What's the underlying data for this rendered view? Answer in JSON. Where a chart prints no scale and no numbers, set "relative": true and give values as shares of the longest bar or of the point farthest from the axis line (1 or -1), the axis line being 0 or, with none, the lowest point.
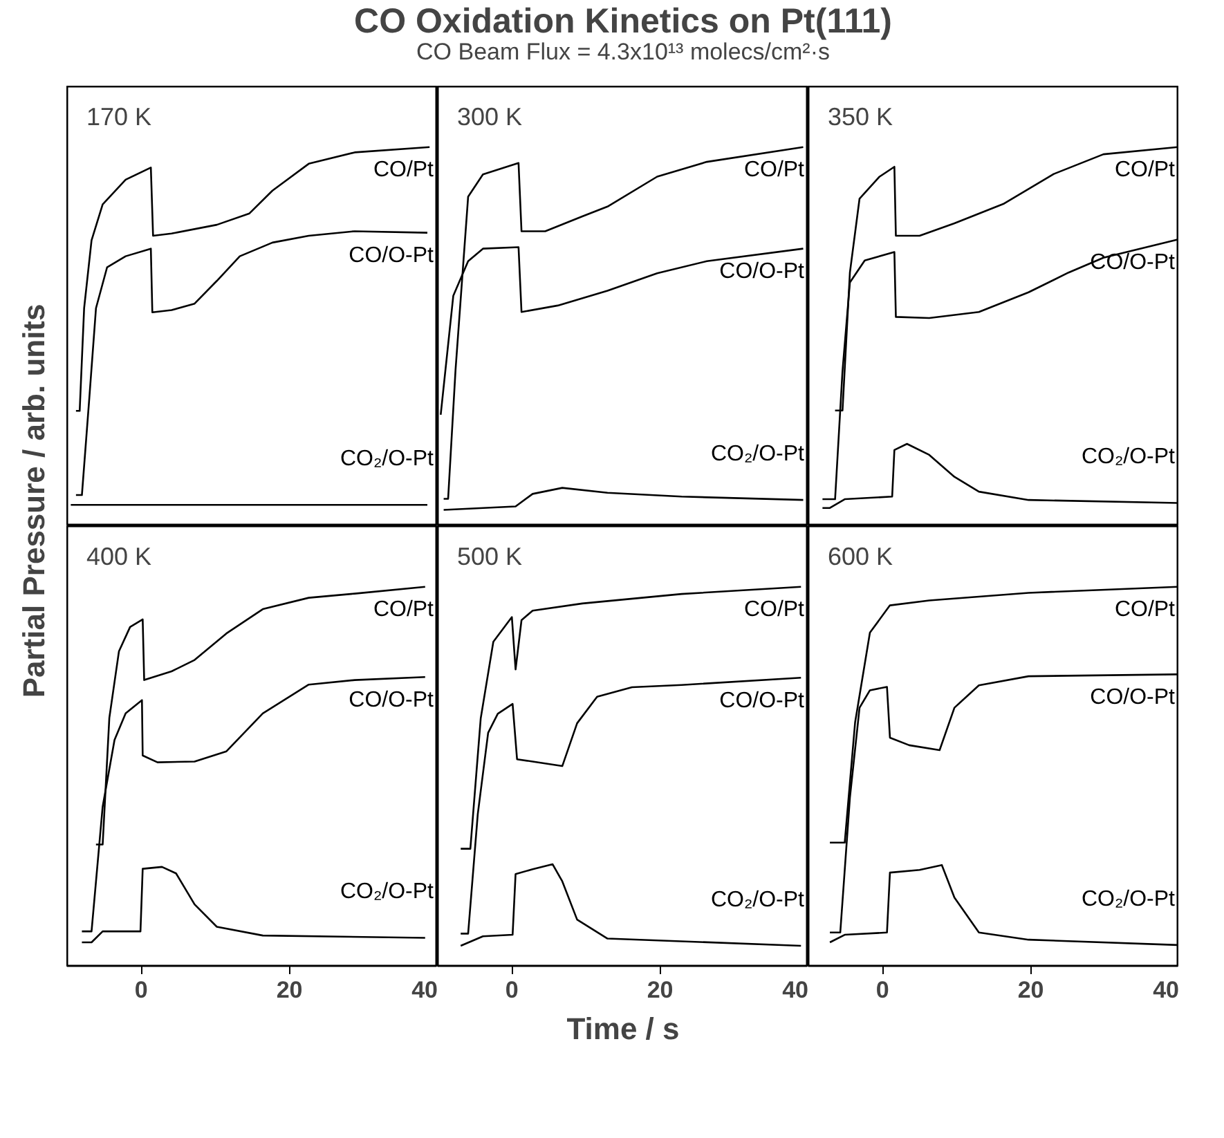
{
  "chart_data": [
    {
      "type": "line",
      "ylabel": "Partial Pressure / arb. units",
      "relative": true,
      "annotations": [
        "170 K"
      ],
      "xlim": [
        -10,
        40
      ],
      "tick_labels": false,
      "grid": false,
      "series": [
        {
          "name": "CO/Pt",
          "color": "#000000",
          "x": [
            -8.8,
            -8.3,
            -7.7,
            -6.7,
            -5.2,
            -2.1,
            1.3,
            1.6,
            4.1,
            10.2,
            14.6,
            17.7,
            22.6,
            28.8,
            38.9
          ],
          "values": [
            0.304,
            0.304,
            0.575,
            0.754,
            0.849,
            0.914,
            0.946,
            0.766,
            0.772,
            0.795,
            0.825,
            0.885,
            0.956,
            0.986,
            1.0
          ]
        },
        {
          "name": "CO/O-Pt",
          "color": "#000000",
          "x": [
            -8.8,
            -8,
            -7,
            -6.1,
            -4.6,
            -2.1,
            1.3,
            1.5,
            4.1,
            7.2,
            10.2,
            13.3,
            17.7,
            22.6,
            28.8,
            38.6
          ],
          "values": [
            0.082,
            0.082,
            0.338,
            0.575,
            0.683,
            0.712,
            0.732,
            0.564,
            0.57,
            0.587,
            0.647,
            0.712,
            0.748,
            0.766,
            0.778,
            0.774
          ]
        },
        {
          "name": "CO₂/O-Pt",
          "color": "#000000",
          "x": [
            -9.5,
            10,
            38.6
          ],
          "values": [
            0.056,
            0.056,
            0.056
          ]
        }
      ]
    },
    {
      "type": "line",
      "title": "CO Oxidation Kinetics on Pt(111)",
      "subtitle": "CO Beam Flux = 4.3x10¹³ molecs/cm²·s",
      "relative": true,
      "annotations": [
        "300 K"
      ],
      "xlim": [
        -10,
        40
      ],
      "tick_labels": false,
      "grid": false,
      "series": [
        {
          "name": "CO/Pt",
          "color": "#000000",
          "x": [
            -9.2,
            -8.6,
            -7.6,
            -5.9,
            -3.9,
            0.9,
            1.3,
            4.5,
            9.5,
            12.9,
            19.6,
            26.3,
            39.3
          ],
          "values": [
            0.072,
            0.072,
            0.412,
            0.869,
            0.928,
            0.958,
            0.778,
            0.778,
            0.817,
            0.843,
            0.922,
            0.961,
            1.0
          ]
        },
        {
          "name": "CO/O-Pt",
          "color": "#000000",
          "x": [
            -9.6,
            -7.9,
            -5.9,
            -3.9,
            0.9,
            1.3,
            6.2,
            12.9,
            19.6,
            26.3,
            39.3
          ],
          "values": [
            0.294,
            0.608,
            0.699,
            0.732,
            0.736,
            0.565,
            0.582,
            0.621,
            0.667,
            0.699,
            0.732
          ]
        },
        {
          "name": "CO₂/O-Pt",
          "color": "#000000",
          "x": [
            -9.2,
            0.5,
            2.8,
            6.8,
            12.9,
            22.9,
            39.3
          ],
          "values": [
            0.043,
            0.052,
            0.085,
            0.101,
            0.088,
            0.078,
            0.069
          ]
        }
      ]
    },
    {
      "type": "line",
      "relative": true,
      "annotations": [
        "350 K"
      ],
      "xlim": [
        -10,
        40
      ],
      "tick_labels": false,
      "grid": false,
      "series": [
        {
          "name": "CO/Pt",
          "color": "#000000",
          "x": [
            -6.4,
            -5.4,
            -4.4,
            -3.1,
            -0.4,
            1.6,
            1.8,
            5,
            9.7,
            16.4,
            23.1,
            29.8,
            39.8
          ],
          "values": [
            0.305,
            0.305,
            0.669,
            0.864,
            0.922,
            0.948,
            0.766,
            0.766,
            0.799,
            0.851,
            0.929,
            0.981,
            1.0
          ]
        },
        {
          "name": "CO/O-Pt",
          "color": "#000000",
          "x": [
            -8.1,
            -6.4,
            -5.4,
            -4.4,
            -2.4,
            1.6,
            1.8,
            6.3,
            13,
            19.7,
            25.1,
            29.8,
            39.8
          ],
          "values": [
            0.071,
            0.071,
            0.409,
            0.643,
            0.701,
            0.723,
            0.552,
            0.549,
            0.565,
            0.617,
            0.669,
            0.708,
            0.756
          ]
        },
        {
          "name": "CO₂/O-Pt",
          "color": "#000000",
          "x": [
            -8.1,
            -7.1,
            -5.1,
            1.3,
            1.6,
            3.3,
            6.3,
            9.7,
            13,
            19.7,
            39.8
          ],
          "values": [
            0.048,
            0.048,
            0.071,
            0.078,
            0.201,
            0.217,
            0.188,
            0.13,
            0.091,
            0.069,
            0.061
          ]
        }
      ]
    },
    {
      "type": "line",
      "relative": true,
      "annotations": [
        "400 K"
      ],
      "xlim": [
        -10,
        40
      ],
      "xticks": [
        0,
        20,
        40
      ],
      "tick_labels": "x",
      "grid": false,
      "series": [
        {
          "name": "CO/Pt",
          "color": "#000000",
          "x": [
            -6.1,
            -5.2,
            -4.3,
            -3,
            -1.5,
            0.2,
            0.4,
            4.1,
            7.2,
            11.5,
            16.4,
            22.6,
            28.8,
            38.3
          ],
          "values": [
            0.32,
            0.32,
            0.654,
            0.83,
            0.894,
            0.914,
            0.754,
            0.777,
            0.807,
            0.877,
            0.941,
            0.971,
            0.982,
            1.0
          ]
        },
        {
          "name": "CO/O-Pt",
          "color": "#000000",
          "x": [
            -8,
            -6.7,
            -5.2,
            -3.6,
            -2.1,
            0.1,
            0.2,
            2.2,
            7.2,
            11.5,
            16.4,
            22.6,
            28.8,
            38.3
          ],
          "values": [
            0.091,
            0.091,
            0.42,
            0.596,
            0.666,
            0.701,
            0.555,
            0.537,
            0.539,
            0.566,
            0.666,
            0.742,
            0.754,
            0.762
          ]
        },
        {
          "name": "CO₂/O-Pt",
          "color": "#000000",
          "x": [
            -8,
            -6.7,
            -5.2,
            -2.1,
            -0.1,
            0.2,
            2.8,
            4.7,
            7.2,
            10.2,
            16.4,
            38.3
          ],
          "values": [
            0.062,
            0.062,
            0.091,
            0.091,
            0.091,
            0.256,
            0.261,
            0.244,
            0.162,
            0.103,
            0.08,
            0.074
          ]
        }
      ]
    },
    {
      "type": "line",
      "relative": true,
      "xlabel": "Time / s",
      "annotations": [
        "500 K"
      ],
      "xlim": [
        -10,
        40
      ],
      "xticks": [
        0,
        20,
        40
      ],
      "tick_labels": "x",
      "grid": false,
      "series": [
        {
          "name": "CO/Pt",
          "color": "#000000",
          "x": [
            -6.9,
            -5.6,
            -4.2,
            -2.5,
            0,
            0.5,
            1.3,
            2.8,
            9.5,
            22.9,
            39
          ],
          "values": [
            0.309,
            0.309,
            0.653,
            0.855,
            0.92,
            0.782,
            0.912,
            0.937,
            0.956,
            0.981,
            1.0
          ]
        },
        {
          "name": "CO/O-Pt",
          "color": "#000000",
          "x": [
            -6.9,
            -5.9,
            -4.6,
            -3.2,
            -1.9,
            0.1,
            0.7,
            2.8,
            6.8,
            8.8,
            11.5,
            16.2,
            22.9,
            39
          ],
          "values": [
            0.085,
            0.085,
            0.4,
            0.615,
            0.665,
            0.691,
            0.545,
            0.539,
            0.527,
            0.64,
            0.71,
            0.735,
            0.741,
            0.76
          ]
        },
        {
          "name": "CO₂/O-Pt",
          "color": "#000000",
          "x": [
            -6.9,
            -3.9,
            0.1,
            0.5,
            2.8,
            5.5,
            6.8,
            8.8,
            12.9,
            39
          ],
          "values": [
            0.053,
            0.078,
            0.082,
            0.242,
            0.255,
            0.268,
            0.223,
            0.122,
            0.072,
            0.053
          ]
        }
      ]
    },
    {
      "type": "line",
      "relative": true,
      "annotations": [
        "600 K"
      ],
      "xlim": [
        -10,
        40
      ],
      "xticks": [
        0,
        20,
        40
      ],
      "tick_labels": "x",
      "grid": false,
      "series": [
        {
          "name": "CO/Pt",
          "color": "#000000",
          "x": [
            -7.1,
            -5.1,
            -3.7,
            -1.7,
            1,
            6.3,
            19.7,
            39.8
          ],
          "values": [
            0.325,
            0.325,
            0.642,
            0.879,
            0.951,
            0.964,
            0.984,
            1.0
          ]
        },
        {
          "name": "CO/O-Pt",
          "color": "#000000",
          "x": [
            -7.1,
            -5.7,
            -4.4,
            -3.1,
            -1.7,
            0.6,
            1,
            3.6,
            7.7,
            9.7,
            13,
            19.7,
            39.8
          ],
          "values": [
            0.088,
            0.088,
            0.444,
            0.681,
            0.727,
            0.736,
            0.602,
            0.582,
            0.569,
            0.681,
            0.74,
            0.764,
            0.769
          ]
        },
        {
          "name": "CO₂/O-Pt",
          "color": "#000000",
          "x": [
            -7.1,
            -5.1,
            0.6,
            1,
            5,
            8,
            9.7,
            13,
            19.7,
            39.8
          ],
          "values": [
            0.062,
            0.082,
            0.088,
            0.246,
            0.253,
            0.266,
            0.18,
            0.088,
            0.069,
            0.055
          ]
        }
      ]
    }
  ]
}
